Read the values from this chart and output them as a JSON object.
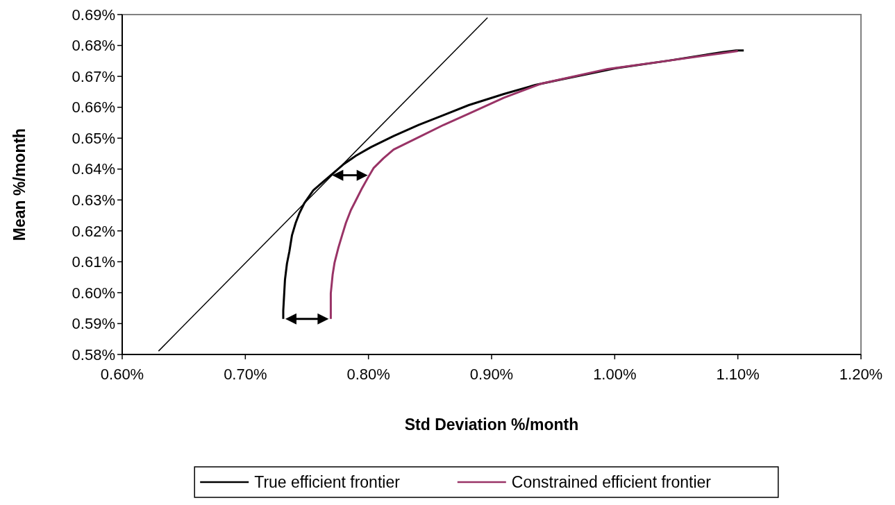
{
  "chart_data": {
    "type": "line",
    "xlabel": "Std Deviation %/month",
    "ylabel": "Mean %/month",
    "xlim": [
      0.6,
      1.2
    ],
    "xticks": [
      {
        "value": 0.6,
        "label": "0.60%"
      },
      {
        "value": 0.7,
        "label": "0.70%"
      },
      {
        "value": 0.8,
        "label": "0.80%"
      },
      {
        "value": 0.9,
        "label": "0.90%"
      },
      {
        "value": 1.0,
        "label": "1.00%"
      },
      {
        "value": 1.1,
        "label": "1.10%"
      },
      {
        "value": 1.2,
        "label": "1.20%"
      }
    ],
    "ylim": [
      0.58,
      0.69
    ],
    "yticks": [
      {
        "value": 0.58,
        "label": "0.58%"
      },
      {
        "value": 0.59,
        "label": "0.59%"
      },
      {
        "value": 0.6,
        "label": "0.60%"
      },
      {
        "value": 0.61,
        "label": "0.61%"
      },
      {
        "value": 0.62,
        "label": "0.62%"
      },
      {
        "value": 0.63,
        "label": "0.63%"
      },
      {
        "value": 0.64,
        "label": "0.64%"
      },
      {
        "value": 0.65,
        "label": "0.65%"
      },
      {
        "value": 0.66,
        "label": "0.66%"
      },
      {
        "value": 0.67,
        "label": "0.67%"
      },
      {
        "value": 0.68,
        "label": "0.68%"
      },
      {
        "value": 0.69,
        "label": "0.69%"
      }
    ],
    "grid": false,
    "legend": "bottom",
    "marker": "none",
    "line_style": "solid",
    "series": [
      {
        "name": "True efficient frontier",
        "color": "#000000",
        "x": [
          0.7308,
          0.7308,
          0.7322,
          0.7338,
          0.7358,
          0.7379,
          0.7409,
          0.744,
          0.7481,
          0.7552,
          0.7633,
          0.7694,
          0.7796,
          0.7898,
          0.802,
          0.8204,
          0.8407,
          0.8611,
          0.8815,
          0.91,
          0.9355,
          0.9541,
          1.0004,
          1.0439,
          1.0873,
          1.0986,
          1.1048
        ],
        "values": [
          0.5915,
          0.5942,
          0.6042,
          0.6094,
          0.6134,
          0.6186,
          0.6226,
          0.6258,
          0.6291,
          0.6331,
          0.6359,
          0.638,
          0.6415,
          0.6443,
          0.6471,
          0.6507,
          0.6543,
          0.6575,
          0.6607,
          0.6643,
          0.6672,
          0.6688,
          0.6726,
          0.6751,
          0.6778,
          0.6784,
          0.6784
        ]
      },
      {
        "name": "Constrained efficient frontier",
        "color": "#993366",
        "x": [
          0.7694,
          0.7694,
          0.7709,
          0.7725,
          0.7756,
          0.7786,
          0.7817,
          0.7857,
          0.7898,
          0.7949,
          0.8,
          0.8041,
          0.8122,
          0.8204,
          0.8407,
          0.8611,
          0.8815,
          0.91,
          0.9399,
          0.9943,
          1.0439,
          1.0873,
          1.1
        ],
        "values": [
          0.5915,
          0.5998,
          0.6058,
          0.6098,
          0.6146,
          0.6186,
          0.6226,
          0.6267,
          0.6299,
          0.6339,
          0.6375,
          0.6403,
          0.6435,
          0.6463,
          0.6503,
          0.6543,
          0.6579,
          0.6631,
          0.6676,
          0.6724,
          0.6751,
          0.6775,
          0.6782
        ]
      },
      {
        "color": "#000000",
        "x": [
          0.6295,
          0.8967
        ],
        "values": [
          0.5811,
          0.689
        ]
      }
    ]
  }
}
